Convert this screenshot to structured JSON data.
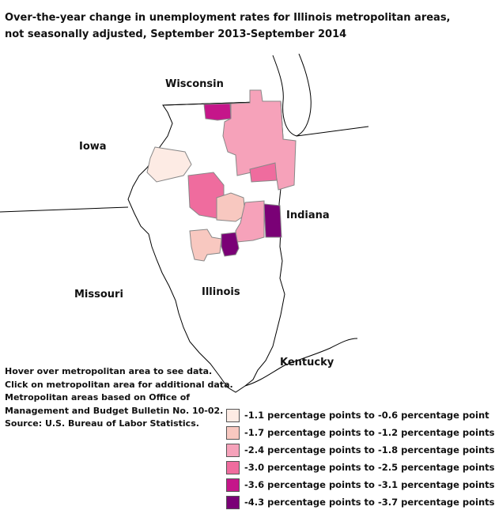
{
  "title": "Over-the-year change in unemployment rates for Illinois metropolitan areas, not seasonally adjusted, September 2013-September 2014",
  "state_labels": {
    "wisconsin": "Wisconsin",
    "iowa": "Iowa",
    "indiana": "Indiana",
    "missouri": "Missouri",
    "illinois": "Illinois",
    "kentucky": "Kentucky"
  },
  "notes": [
    "Hover over metropolitan area to see data.",
    "Click on metropolitan area for additional data.",
    "Metropolitan areas based on Office of",
    "Management and Budget Bulletin No. 10-02.",
    "Source: U.S. Bureau of Labor Statistics."
  ],
  "legend": [
    {
      "label": "-1.1 percentage points to -0.6 percentage point",
      "color": "#fdebe4"
    },
    {
      "label": "-1.7 percentage points to -1.2 percentage points",
      "color": "#f8c8c0"
    },
    {
      "label": "-2.4  percentage points to -1.8 percentage points",
      "color": "#f6a2ba"
    },
    {
      "label": "-3.0  percentage points to -2.5 percentage points",
      "color": "#ef6c9e"
    },
    {
      "label": "-3.6  percentage points to -3.1 percentage points",
      "color": "#c5168a"
    },
    {
      "label": "-4.3  percentage points to -3.7  percentage points",
      "color": "#7a0176"
    }
  ],
  "map_colors": {
    "outline": "#000000",
    "background": "#ffffff"
  }
}
